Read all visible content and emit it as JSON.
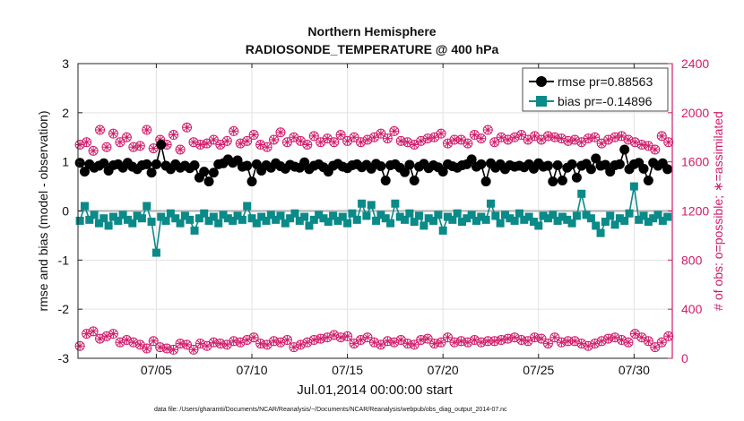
{
  "chart_data": {
    "type": "line",
    "title_line1": "Northern Hemisphere",
    "title_line2": "RADIOSONDE_TEMPERATURE @ 400 hPa",
    "xlabel": "Jul.01,2014 00:00:00 start",
    "ylabel_left": "rmse and bias (model - observation)",
    "ylabel_right": "# of obs: o=possible; ∗=assimilated",
    "footer": "data file: /Users/gharamti/Documents/NCAR/Reanalysis/~/Documents/NCAR/Reanalysis/webpub/obs_diag_output_2014-07.nc",
    "xlim": [
      0.9,
      32.0
    ],
    "ylim_left": [
      -3,
      3
    ],
    "ylim_right": [
      0,
      2400
    ],
    "xticks": [
      5,
      10,
      15,
      20,
      25,
      30
    ],
    "xtick_labels": [
      "07/05",
      "07/10",
      "07/15",
      "07/20",
      "07/25",
      "07/30"
    ],
    "yticks_left": [
      -3,
      -2,
      -1,
      0,
      1,
      2,
      3
    ],
    "yticks_right": [
      0,
      400,
      800,
      1200,
      1600,
      2000,
      2400
    ],
    "legend": [
      {
        "name": "rmse pr=0.88563",
        "color": "#000000",
        "marker": "circle"
      },
      {
        "name": "bias pr=-0.14896",
        "color": "#0a8a88",
        "marker": "square"
      }
    ],
    "colors": {
      "rmse": "#000000",
      "bias": "#0a8a88",
      "obs": "#d01c6a",
      "zero_line": "#b0b0b0",
      "grid": "#e2e2e2"
    },
    "rmse_x": [
      1.0,
      1.25,
      1.5,
      1.75,
      2.0,
      2.25,
      2.5,
      2.75,
      3.0,
      3.25,
      3.5,
      3.75,
      4.0,
      4.25,
      4.5,
      4.75,
      5.0,
      5.25,
      5.5,
      5.75,
      6.0,
      6.25,
      6.5,
      6.75,
      7.0,
      7.25,
      7.5,
      7.75,
      8.0,
      8.25,
      8.5,
      8.75,
      9.0,
      9.25,
      9.5,
      9.75,
      10.0,
      10.25,
      10.5,
      10.75,
      11.0,
      11.25,
      11.5,
      11.75,
      12.0,
      12.25,
      12.5,
      12.75,
      13.0,
      13.25,
      13.5,
      13.75,
      14.0,
      14.25,
      14.5,
      14.75,
      15.0,
      15.25,
      15.5,
      15.75,
      16.0,
      16.25,
      16.5,
      16.75,
      17.0,
      17.25,
      17.5,
      17.75,
      18.0,
      18.25,
      18.5,
      18.75,
      19.0,
      19.25,
      19.5,
      19.75,
      20.0,
      20.25,
      20.5,
      20.75,
      21.0,
      21.25,
      21.5,
      21.75,
      22.0,
      22.25,
      22.5,
      22.75,
      23.0,
      23.25,
      23.5,
      23.75,
      24.0,
      24.25,
      24.5,
      24.75,
      25.0,
      25.25,
      25.5,
      25.75,
      26.0,
      26.25,
      26.5,
      26.75,
      27.0,
      27.25,
      27.5,
      27.75,
      28.0,
      28.25,
      28.5,
      28.75,
      29.0,
      29.25,
      29.5,
      29.75,
      30.0,
      30.25,
      30.5,
      30.75,
      31.0,
      31.25,
      31.5,
      31.75
    ],
    "rmse": [
      0.98,
      0.8,
      0.95,
      0.88,
      0.92,
      0.97,
      0.82,
      0.93,
      0.95,
      0.88,
      0.98,
      0.9,
      0.85,
      0.93,
      0.95,
      0.78,
      0.95,
      1.35,
      0.92,
      0.85,
      0.95,
      0.88,
      0.92,
      0.87,
      0.93,
      0.68,
      0.8,
      0.6,
      0.78,
      0.95,
      0.97,
      1.05,
      0.98,
      1.03,
      0.9,
      0.92,
      0.6,
      0.95,
      0.82,
      0.93,
      0.88,
      0.97,
      0.91,
      0.86,
      0.94,
      0.9,
      0.88,
      0.99,
      0.85,
      0.92,
      0.95,
      0.89,
      0.8,
      0.92,
      0.96,
      0.9,
      0.87,
      0.93,
      0.95,
      0.89,
      0.94,
      0.86,
      0.96,
      0.91,
      0.62,
      0.93,
      0.95,
      0.88,
      0.79,
      0.94,
      0.62,
      0.9,
      0.96,
      0.87,
      0.93,
      0.89,
      0.8,
      0.95,
      0.91,
      0.88,
      0.93,
      0.95,
      1.05,
      0.9,
      0.95,
      0.6,
      0.97,
      0.88,
      0.95,
      0.85,
      0.93,
      0.9,
      0.92,
      0.89,
      0.95,
      0.86,
      0.97,
      0.9,
      0.92,
      0.6,
      0.93,
      0.62,
      0.88,
      0.95,
      0.68,
      0.92,
      0.96,
      0.85,
      1.07,
      0.92,
      0.94,
      0.8,
      0.93,
      0.95,
      1.25,
      0.85,
      0.95,
      0.98,
      0.86,
      0.62,
      0.98,
      0.92,
      0.97,
      0.85,
      0.65,
      0.92,
      0.8
    ],
    "bias_x": [
      1.0,
      1.25,
      1.5,
      1.75,
      2.0,
      2.25,
      2.5,
      2.75,
      3.0,
      3.25,
      3.5,
      3.75,
      4.0,
      4.25,
      4.5,
      4.75,
      5.0,
      5.25,
      5.5,
      5.75,
      6.0,
      6.25,
      6.5,
      6.75,
      7.0,
      7.25,
      7.5,
      7.75,
      8.0,
      8.25,
      8.5,
      8.75,
      9.0,
      9.25,
      9.5,
      9.75,
      10.0,
      10.25,
      10.5,
      10.75,
      11.0,
      11.25,
      11.5,
      11.75,
      12.0,
      12.25,
      12.5,
      12.75,
      13.0,
      13.25,
      13.5,
      13.75,
      14.0,
      14.25,
      14.5,
      14.75,
      15.0,
      15.25,
      15.5,
      15.75,
      16.0,
      16.25,
      16.5,
      16.75,
      17.0,
      17.25,
      17.5,
      17.75,
      18.0,
      18.25,
      18.5,
      18.75,
      19.0,
      19.25,
      19.5,
      19.75,
      20.0,
      20.25,
      20.5,
      20.75,
      21.0,
      21.25,
      21.5,
      21.75,
      22.0,
      22.25,
      22.5,
      22.75,
      23.0,
      23.25,
      23.5,
      23.75,
      24.0,
      24.25,
      24.5,
      24.75,
      25.0,
      25.25,
      25.5,
      25.75,
      26.0,
      26.25,
      26.5,
      26.75,
      27.0,
      27.25,
      27.5,
      27.75,
      28.0,
      28.25,
      28.5,
      28.75,
      29.0,
      29.25,
      29.5,
      29.75,
      30.0,
      30.25,
      30.5,
      30.75,
      31.0,
      31.25,
      31.5,
      31.75
    ],
    "bias": [
      -0.2,
      0.1,
      -0.18,
      -0.08,
      -0.25,
      -0.15,
      -0.3,
      -0.12,
      -0.2,
      -0.08,
      -0.18,
      -0.25,
      -0.1,
      -0.15,
      0.1,
      -0.22,
      -0.85,
      -0.12,
      -0.2,
      -0.05,
      -0.15,
      -0.25,
      -0.1,
      -0.18,
      -0.4,
      -0.15,
      -0.05,
      -0.2,
      -0.12,
      -0.25,
      -0.08,
      -0.15,
      -0.2,
      -0.1,
      -0.18,
      0.1,
      -0.15,
      -0.25,
      -0.12,
      -0.2,
      -0.08,
      -0.18,
      -0.1,
      -0.25,
      -0.15,
      -0.05,
      -0.2,
      -0.12,
      -0.3,
      -0.18,
      -0.08,
      -0.15,
      -0.22,
      -0.1,
      -0.2,
      -0.12,
      -0.25,
      -0.05,
      -0.18,
      0.15,
      -0.1,
      0.12,
      -0.2,
      -0.08,
      -0.15,
      -0.25,
      0.15,
      -0.12,
      -0.18,
      -0.05,
      -0.22,
      -0.1,
      -0.3,
      -0.15,
      -0.2,
      -0.08,
      -0.4,
      -0.12,
      -0.18,
      -0.05,
      -0.22,
      -0.15,
      -0.08,
      -0.2,
      -0.12,
      -0.18,
      0.15,
      -0.1,
      -0.25,
      -0.08,
      -0.15,
      -0.2,
      -0.05,
      -0.18,
      -0.12,
      -0.22,
      -0.3,
      -0.1,
      -0.15,
      -0.08,
      -0.2,
      -0.12,
      -0.18,
      -0.25,
      -0.1,
      0.35,
      -0.08,
      -0.15,
      -0.3,
      -0.45,
      -0.22,
      -0.1,
      -0.28,
      -0.15,
      -0.2,
      -0.05,
      0.5,
      -0.18,
      -0.1,
      -0.22,
      -0.15,
      -0.08,
      -0.2,
      -0.12,
      -0.25,
      -0.15,
      -0.22,
      -0.3
    ],
    "obs_x": [
      1.0,
      1.35,
      1.7,
      2.05,
      2.4,
      2.75,
      3.1,
      3.45,
      3.8,
      4.15,
      4.5,
      4.85,
      5.2,
      5.55,
      5.9,
      6.25,
      6.6,
      6.95,
      7.3,
      7.65,
      8.0,
      8.35,
      8.7,
      9.05,
      9.4,
      9.75,
      10.1,
      10.45,
      10.8,
      11.15,
      11.5,
      11.85,
      12.2,
      12.55,
      12.9,
      13.25,
      13.6,
      13.95,
      14.3,
      14.65,
      15.0,
      15.35,
      15.7,
      16.05,
      16.4,
      16.75,
      17.1,
      17.45,
      17.8,
      18.15,
      18.5,
      18.85,
      19.2,
      19.55,
      19.9,
      20.25,
      20.6,
      20.95,
      21.3,
      21.65,
      22.0,
      22.35,
      22.7,
      23.05,
      23.4,
      23.75,
      24.1,
      24.45,
      24.8,
      25.15,
      25.5,
      25.85,
      26.2,
      26.55,
      26.9,
      27.25,
      27.6,
      27.95,
      28.3,
      28.65,
      29.0,
      29.35,
      29.7,
      30.05,
      30.4,
      30.75,
      31.1,
      31.45,
      31.8
    ],
    "obs_high": [
      1740,
      1760,
      1690,
      1860,
      1720,
      1830,
      1760,
      1800,
      1720,
      1730,
      1860,
      1710,
      1780,
      1740,
      1820,
      1700,
      1880,
      1760,
      1740,
      1750,
      1780,
      1740,
      1770,
      1850,
      1750,
      1770,
      1820,
      1740,
      1720,
      1780,
      1840,
      1760,
      1800,
      1770,
      1740,
      1810,
      1760,
      1790,
      1760,
      1820,
      1770,
      1800,
      1760,
      1780,
      1800,
      1830,
      1790,
      1850,
      1770,
      1760,
      1740,
      1770,
      1790,
      1800,
      1830,
      1750,
      1780,
      1780,
      1750,
      1820,
      1790,
      1860,
      1760,
      1800,
      1780,
      1800,
      1820,
      1780,
      1810,
      1780,
      1810,
      1800,
      1790,
      1770,
      1780,
      1760,
      1790,
      1800,
      1750,
      1780,
      1800,
      1810,
      1780,
      1760,
      1740,
      1730,
      1700,
      1810,
      1760
    ],
    "obs_low": [
      100,
      200,
      220,
      160,
      180,
      200,
      130,
      150,
      130,
      110,
      80,
      140,
      90,
      80,
      70,
      120,
      110,
      70,
      120,
      100,
      130,
      120,
      110,
      140,
      130,
      150,
      170,
      120,
      110,
      140,
      130,
      150,
      90,
      110,
      130,
      150,
      160,
      170,
      190,
      170,
      180,
      120,
      150,
      170,
      130,
      110,
      140,
      130,
      150,
      120,
      110,
      150,
      160,
      120,
      130,
      170,
      130,
      140,
      130,
      150,
      130,
      140,
      140,
      150,
      160,
      170,
      150,
      140,
      170,
      160,
      120,
      170,
      130,
      140,
      140,
      120,
      100,
      120,
      140,
      160,
      170,
      150,
      130,
      200,
      170,
      140,
      90,
      130,
      180
    ]
  }
}
